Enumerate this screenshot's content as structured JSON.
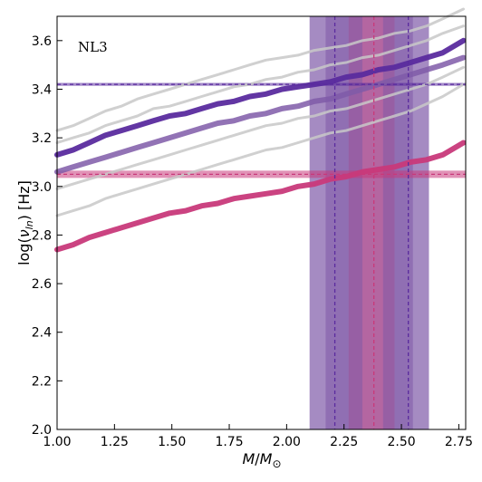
{
  "chart_data": {
    "type": "line",
    "model_label": "NL3",
    "xlabel": "M/M_⊙",
    "ylabel": "log(ν_ln) [Hz]",
    "xlim": [
      1.0,
      2.78
    ],
    "ylim": [
      2.0,
      3.7
    ],
    "grid": false,
    "xticks": [
      "1.00",
      "1.25",
      "1.50",
      "1.75",
      "2.00",
      "2.25",
      "2.50",
      "2.75"
    ],
    "yticks": [
      "2.0",
      "2.2",
      "2.4",
      "2.6",
      "2.8",
      "3.0",
      "3.2",
      "3.4",
      "3.6"
    ],
    "x": [
      1.0,
      1.07,
      1.14,
      1.21,
      1.28,
      1.35,
      1.42,
      1.49,
      1.56,
      1.63,
      1.7,
      1.77,
      1.84,
      1.91,
      1.98,
      2.05,
      2.12,
      2.19,
      2.26,
      2.33,
      2.4,
      2.47,
      2.54,
      2.61,
      2.68,
      2.77
    ],
    "colors": {
      "upper": "#5a2b9e",
      "middle": "#7f5aa8",
      "lower": "#c8397a",
      "gray": "#c8c8c8"
    },
    "series": [
      {
        "role": "gray",
        "values": [
          3.23,
          3.25,
          3.28,
          3.31,
          3.33,
          3.36,
          3.38,
          3.4,
          3.42,
          3.44,
          3.46,
          3.48,
          3.5,
          3.52,
          3.53,
          3.54,
          3.56,
          3.57,
          3.58,
          3.6,
          3.61,
          3.63,
          3.64,
          3.66,
          3.69,
          3.73
        ]
      },
      {
        "role": "gray",
        "values": [
          3.18,
          3.2,
          3.22,
          3.25,
          3.27,
          3.29,
          3.32,
          3.33,
          3.35,
          3.37,
          3.39,
          3.41,
          3.42,
          3.44,
          3.45,
          3.47,
          3.48,
          3.5,
          3.51,
          3.53,
          3.54,
          3.56,
          3.58,
          3.6,
          3.63,
          3.66
        ]
      },
      {
        "role": "gray",
        "values": [
          2.99,
          3.01,
          3.03,
          3.05,
          3.07,
          3.09,
          3.11,
          3.13,
          3.15,
          3.17,
          3.19,
          3.21,
          3.23,
          3.25,
          3.26,
          3.28,
          3.29,
          3.31,
          3.32,
          3.34,
          3.36,
          3.38,
          3.4,
          3.42,
          3.45,
          3.49
        ]
      },
      {
        "role": "gray",
        "values": [
          2.88,
          2.9,
          2.92,
          2.95,
          2.97,
          2.99,
          3.01,
          3.03,
          3.05,
          3.07,
          3.09,
          3.11,
          3.13,
          3.15,
          3.16,
          3.18,
          3.2,
          3.22,
          3.23,
          3.25,
          3.27,
          3.29,
          3.31,
          3.34,
          3.37,
          3.42
        ]
      },
      {
        "role": "middle",
        "values": [
          3.06,
          3.08,
          3.1,
          3.12,
          3.14,
          3.16,
          3.18,
          3.2,
          3.22,
          3.24,
          3.26,
          3.27,
          3.29,
          3.3,
          3.32,
          3.33,
          3.35,
          3.36,
          3.38,
          3.4,
          3.42,
          3.44,
          3.46,
          3.48,
          3.5,
          3.53
        ]
      },
      {
        "role": "upper",
        "values": [
          3.13,
          3.15,
          3.18,
          3.21,
          3.23,
          3.25,
          3.27,
          3.29,
          3.3,
          3.32,
          3.34,
          3.35,
          3.37,
          3.38,
          3.4,
          3.41,
          3.42,
          3.43,
          3.45,
          3.46,
          3.48,
          3.49,
          3.51,
          3.53,
          3.55,
          3.6
        ]
      },
      {
        "role": "lower",
        "values": [
          2.74,
          2.76,
          2.79,
          2.81,
          2.83,
          2.85,
          2.87,
          2.89,
          2.9,
          2.92,
          2.93,
          2.95,
          2.96,
          2.97,
          2.98,
          3.0,
          3.01,
          3.03,
          3.04,
          3.06,
          3.07,
          3.08,
          3.1,
          3.11,
          3.13,
          3.18
        ]
      }
    ],
    "horizontal_bands": [
      {
        "role": "upper",
        "center": 3.42,
        "half_width": 0.006
      },
      {
        "role": "lower",
        "center": 3.05,
        "half_width": 0.015
      }
    ],
    "vertical_bands": [
      {
        "role": "middle",
        "from": 2.1,
        "to": 2.62,
        "opacity": 0.7
      },
      {
        "role": "lower",
        "from": 2.27,
        "to": 2.47,
        "opacity": 0.45
      },
      {
        "role": "middle",
        "from": 2.17,
        "to": 2.33,
        "opacity": 0.55
      },
      {
        "role": "middle",
        "from": 2.42,
        "to": 2.55,
        "opacity": 0.55
      }
    ],
    "vertical_lines": [
      {
        "role": "upper",
        "x": 2.21
      },
      {
        "role": "lower",
        "x": 2.38
      },
      {
        "role": "upper",
        "x": 2.53
      }
    ]
  }
}
